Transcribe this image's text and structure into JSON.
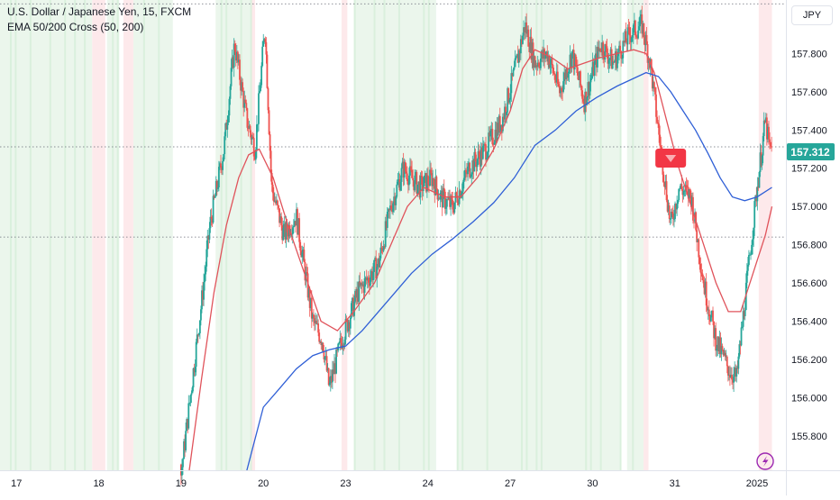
{
  "header": {
    "symbol": "U.S. Dollar / Japanese Yen, 15, FXCM",
    "indicator": "EMA 50/200 Cross (50, 200)"
  },
  "currency_label": "JPY",
  "last_price_label": "157.312",
  "bottom_icon": "lightning-icon",
  "colors": {
    "candle_up": "#26a69a",
    "candle_down": "#ef5350",
    "ema_fast": "#e0535b",
    "ema_slow": "#2f5fd6",
    "bg_bull": "#e8f5e9",
    "bg_bear": "#fde7e9",
    "last_price": "#26a69a",
    "signal_marker": "#f23645"
  },
  "chart_data": {
    "type": "line",
    "title": "U.S. Dollar / Japanese Yen, 15, FXCM",
    "ylim": [
      155.62,
      158.08
    ],
    "y_ticks": [
      155.8,
      156.0,
      156.2,
      156.4,
      156.6,
      156.8,
      157.0,
      157.2,
      157.4,
      157.6,
      157.8
    ],
    "y_tick_labels": [
      "155.800",
      "156.000",
      "156.200",
      "156.400",
      "156.600",
      "156.800",
      "157.000",
      "157.200",
      "157.400",
      "157.600",
      "157.800"
    ],
    "x_ticks": [
      {
        "label": "17",
        "t": 0.2
      },
      {
        "label": "18",
        "t": 1.2
      },
      {
        "label": "19",
        "t": 2.2
      },
      {
        "label": "20",
        "t": 3.2
      },
      {
        "label": "23",
        "t": 4.2
      },
      {
        "label": "24",
        "t": 5.2
      },
      {
        "label": "27",
        "t": 6.2
      },
      {
        "label": "30",
        "t": 7.2
      },
      {
        "label": "31",
        "t": 8.2
      },
      {
        "label": "2025",
        "t": 9.2
      }
    ],
    "xlim": [
      0,
      9.55
    ],
    "last_price": 157.312,
    "horizontal_levels": [
      157.312,
      156.84,
      158.06
    ],
    "price_path": [
      [
        2.2,
        155.6
      ],
      [
        2.45,
        156.5
      ],
      [
        2.55,
        156.9
      ],
      [
        2.72,
        157.3
      ],
      [
        2.85,
        157.85
      ],
      [
        3.0,
        157.45
      ],
      [
        3.1,
        157.3
      ],
      [
        3.22,
        157.95
      ],
      [
        3.3,
        157.1
      ],
      [
        3.45,
        156.85
      ],
      [
        3.6,
        156.95
      ],
      [
        3.8,
        156.4
      ],
      [
        3.92,
        156.3
      ],
      [
        4.0,
        156.05
      ],
      [
        4.15,
        156.3
      ],
      [
        4.35,
        156.55
      ],
      [
        4.6,
        156.7
      ],
      [
        4.75,
        157.0
      ],
      [
        4.9,
        157.2
      ],
      [
        5.1,
        157.1
      ],
      [
        5.25,
        157.15
      ],
      [
        5.35,
        157.05
      ],
      [
        5.5,
        157.0
      ],
      [
        5.7,
        157.2
      ],
      [
        5.9,
        157.3
      ],
      [
        6.1,
        157.45
      ],
      [
        6.25,
        157.7
      ],
      [
        6.38,
        157.95
      ],
      [
        6.5,
        157.75
      ],
      [
        6.65,
        157.8
      ],
      [
        6.8,
        157.6
      ],
      [
        6.95,
        157.8
      ],
      [
        7.1,
        157.55
      ],
      [
        7.3,
        157.85
      ],
      [
        7.45,
        157.75
      ],
      [
        7.65,
        157.9
      ],
      [
        7.8,
        157.95
      ],
      [
        7.9,
        157.75
      ],
      [
        8.0,
        157.4
      ],
      [
        8.15,
        156.9
      ],
      [
        8.25,
        157.1
      ],
      [
        8.4,
        157.05
      ],
      [
        8.55,
        156.6
      ],
      [
        8.7,
        156.3
      ],
      [
        8.85,
        156.15
      ],
      [
        8.95,
        156.1
      ],
      [
        9.05,
        156.5
      ],
      [
        9.2,
        157.1
      ],
      [
        9.3,
        157.45
      ],
      [
        9.35,
        157.3
      ],
      [
        9.38,
        157.3
      ]
    ],
    "series": [
      {
        "name": "EMA 50",
        "points": [
          [
            2.3,
            155.62
          ],
          [
            2.45,
            156.1
          ],
          [
            2.6,
            156.55
          ],
          [
            2.75,
            156.9
          ],
          [
            2.9,
            157.15
          ],
          [
            3.02,
            157.27
          ],
          [
            3.15,
            157.3
          ],
          [
            3.32,
            157.15
          ],
          [
            3.5,
            156.9
          ],
          [
            3.7,
            156.65
          ],
          [
            3.9,
            156.4
          ],
          [
            4.1,
            156.35
          ],
          [
            4.3,
            156.45
          ],
          [
            4.55,
            156.6
          ],
          [
            4.75,
            156.8
          ],
          [
            4.95,
            157.0
          ],
          [
            5.15,
            157.1
          ],
          [
            5.4,
            157.05
          ],
          [
            5.6,
            157.05
          ],
          [
            5.8,
            157.15
          ],
          [
            6.0,
            157.3
          ],
          [
            6.2,
            157.5
          ],
          [
            6.35,
            157.72
          ],
          [
            6.5,
            157.82
          ],
          [
            6.7,
            157.78
          ],
          [
            6.9,
            157.72
          ],
          [
            7.1,
            157.75
          ],
          [
            7.3,
            157.78
          ],
          [
            7.5,
            157.8
          ],
          [
            7.7,
            157.82
          ],
          [
            7.85,
            157.8
          ],
          [
            7.95,
            157.7
          ],
          [
            8.1,
            157.45
          ],
          [
            8.25,
            157.2
          ],
          [
            8.4,
            157.0
          ],
          [
            8.55,
            156.8
          ],
          [
            8.7,
            156.6
          ],
          [
            8.85,
            156.45
          ],
          [
            9.0,
            156.45
          ],
          [
            9.15,
            156.65
          ],
          [
            9.3,
            156.85
          ],
          [
            9.38,
            157.0
          ]
        ]
      },
      {
        "name": "EMA 200",
        "points": [
          [
            3.0,
            155.62
          ],
          [
            3.2,
            155.95
          ],
          [
            3.4,
            156.05
          ],
          [
            3.6,
            156.15
          ],
          [
            3.8,
            156.22
          ],
          [
            4.0,
            156.25
          ],
          [
            4.2,
            156.27
          ],
          [
            4.4,
            156.35
          ],
          [
            4.6,
            156.45
          ],
          [
            4.8,
            156.55
          ],
          [
            5.0,
            156.65
          ],
          [
            5.25,
            156.75
          ],
          [
            5.5,
            156.83
          ],
          [
            5.75,
            156.92
          ],
          [
            6.0,
            157.02
          ],
          [
            6.25,
            157.15
          ],
          [
            6.5,
            157.32
          ],
          [
            6.75,
            157.4
          ],
          [
            7.0,
            157.5
          ],
          [
            7.25,
            157.57
          ],
          [
            7.5,
            157.63
          ],
          [
            7.7,
            157.67
          ],
          [
            7.85,
            157.7
          ],
          [
            8.0,
            157.68
          ],
          [
            8.15,
            157.6
          ],
          [
            8.3,
            157.5
          ],
          [
            8.45,
            157.4
          ],
          [
            8.6,
            157.28
          ],
          [
            8.75,
            157.15
          ],
          [
            8.9,
            157.05
          ],
          [
            9.05,
            157.03
          ],
          [
            9.2,
            157.05
          ],
          [
            9.38,
            157.1
          ]
        ]
      }
    ],
    "bull_zones": [
      [
        0.0,
        1.12
      ],
      [
        1.3,
        1.45
      ],
      [
        1.62,
        2.1
      ],
      [
        2.62,
        3.05
      ],
      [
        4.3,
        5.3
      ],
      [
        5.55,
        7.55
      ],
      [
        7.62,
        7.82
      ]
    ],
    "bear_zones": [
      [
        1.12,
        1.28
      ],
      [
        1.5,
        1.62
      ],
      [
        3.05,
        3.1
      ],
      [
        4.15,
        4.22
      ],
      [
        7.82,
        7.88
      ],
      [
        9.22,
        9.38
      ]
    ],
    "signal_marker": {
      "t": 8.15,
      "price": 157.255
    },
    "grid": false,
    "legend": "none"
  }
}
